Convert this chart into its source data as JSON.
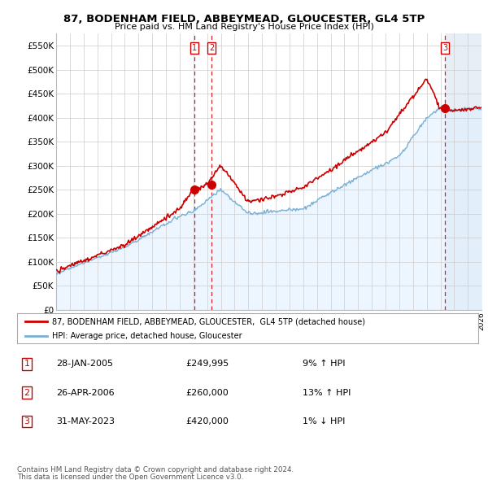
{
  "title": "87, BODENHAM FIELD, ABBEYMEAD, GLOUCESTER, GL4 5TP",
  "subtitle": "Price paid vs. HM Land Registry's House Price Index (HPI)",
  "ylim": [
    0,
    575000
  ],
  "yticks": [
    0,
    50000,
    100000,
    150000,
    200000,
    250000,
    300000,
    350000,
    400000,
    450000,
    500000,
    550000
  ],
  "ytick_labels": [
    "£0",
    "£50K",
    "£100K",
    "£150K",
    "£200K",
    "£250K",
    "£300K",
    "£350K",
    "£400K",
    "£450K",
    "£500K",
    "£550K"
  ],
  "sale_color": "#cc0000",
  "hpi_color": "#7ab0d4",
  "hpi_fill_color": "#ddeeff",
  "future_shade_color": "#e8eef5",
  "marker_color": "#cc0000",
  "legend_house": "87, BODENHAM FIELD, ABBEYMEAD, GLOUCESTER,  GL4 5TP (detached house)",
  "legend_hpi": "HPI: Average price, detached house, Gloucester",
  "footer1": "Contains HM Land Registry data © Crown copyright and database right 2024.",
  "footer2": "This data is licensed under the Open Government Licence v3.0.",
  "table_rows": [
    {
      "num": "1",
      "date": "28-JAN-2005",
      "price": "£249,995",
      "hpi": "9% ↑ HPI"
    },
    {
      "num": "2",
      "date": "26-APR-2006",
      "price": "£260,000",
      "hpi": "13% ↑ HPI"
    },
    {
      "num": "3",
      "date": "31-MAY-2023",
      "price": "£420,000",
      "hpi": "1% ↓ HPI"
    }
  ],
  "background_color": "#ffffff",
  "grid_color": "#cccccc",
  "vline_color": "#cc0000"
}
